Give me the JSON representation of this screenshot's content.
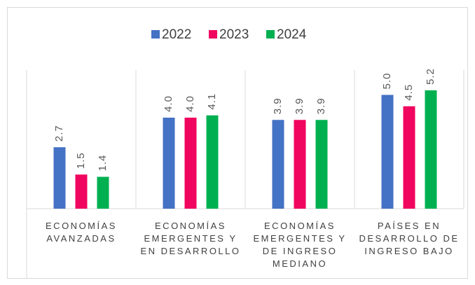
{
  "chart_data": {
    "type": "bar",
    "categories": [
      "ECONOMÍAS AVANZADAS",
      "ECONOMÍAS EMERGENTES Y EN DESARROLLO",
      "ECONOMÍAS EMERGENTES Y DE INGRESO MEDIANO",
      "PAÍSES EN DESARROLLO DE INGRESO BAJO"
    ],
    "series": [
      {
        "name": "2022",
        "color": "#4472c4",
        "values": [
          2.7,
          4.0,
          3.9,
          5.0
        ],
        "value_labels": [
          "2.7",
          "4.0",
          "3.9",
          "5.0"
        ]
      },
      {
        "name": "2023",
        "color": "#f0055f",
        "values": [
          1.5,
          4.0,
          3.9,
          4.5
        ],
        "value_labels": [
          "1.5",
          "4.0",
          "3.9",
          "4.5"
        ]
      },
      {
        "name": "2024",
        "color": "#00b050",
        "values": [
          1.4,
          4.1,
          3.9,
          5.2
        ],
        "value_labels": [
          "1.4",
          "4.1",
          "3.9",
          "5.2"
        ]
      }
    ],
    "ylim": [
      0,
      6
    ],
    "legend": "top"
  }
}
